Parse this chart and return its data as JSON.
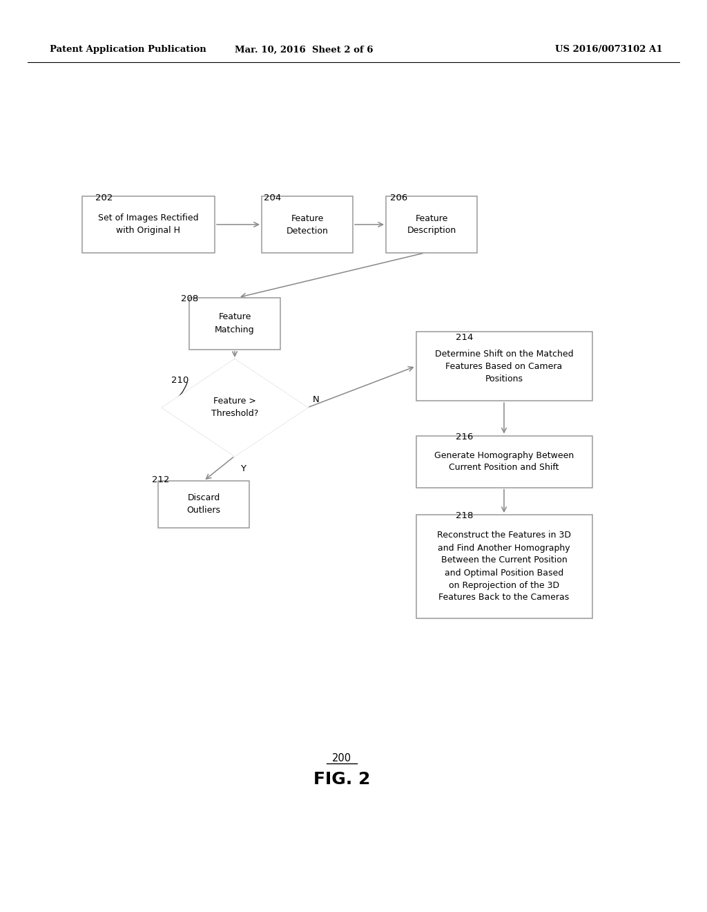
{
  "bg_color": "#ffffff",
  "text_color": "#000000",
  "header_left": "Patent Application Publication",
  "header_mid": "Mar. 10, 2016  Sheet 2 of 6",
  "header_right": "US 2016/0073102 A1",
  "fig_label": "FIG. 2",
  "fig_number": "200",
  "line_color": "#888888",
  "box_edge_color": "#999999"
}
